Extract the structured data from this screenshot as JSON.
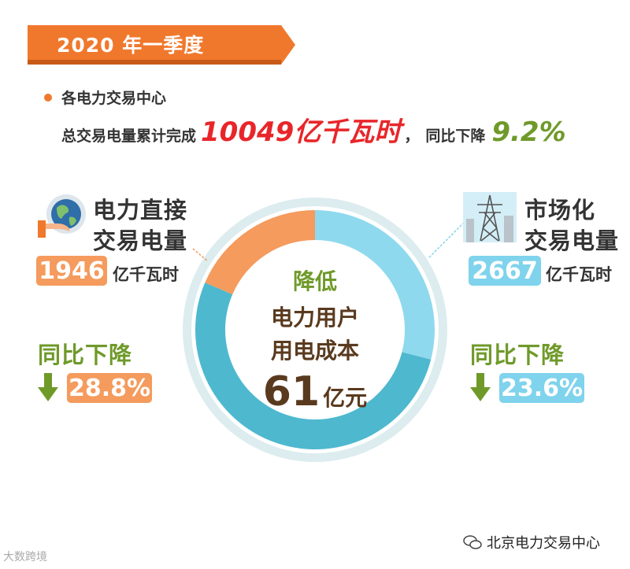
{
  "header": {
    "title": "2020 年一季度"
  },
  "summary": {
    "line1": "各电力交易中心",
    "line2_prefix": "总交易电量累计完成",
    "total_value": "10049亿千瓦时",
    "separator": "，",
    "decline_label": "同比下降",
    "decline_value": "9.2%"
  },
  "colors": {
    "orange": "#f0782d",
    "red": "#e8262a",
    "green": "#6f9a2a",
    "box_orange": "#f49b5d",
    "box_blue": "#7fd3ec",
    "ring_teal": "#4eb8cf"
  },
  "center": {
    "line1": "降低",
    "line2": "电力用户",
    "line3": "用电成本",
    "number": "61",
    "unit": "亿元"
  },
  "left_panel": {
    "title_line1": "电力直接",
    "title_line2": "交易电量",
    "value": "1946",
    "unit": "亿千瓦时",
    "decline_label": "同比下降",
    "decline_value": "28.8%",
    "icon": "globe-hand-icon"
  },
  "right_panel": {
    "title_line1": "市场化",
    "title_line2": "交易电量",
    "value": "2667",
    "unit": "亿千瓦时",
    "decline_label": "同比下降",
    "decline_value": "23.6%",
    "icon": "power-tower-icon"
  },
  "chart_data": {
    "type": "pie",
    "categories": [
      "电力直接交易电量",
      "市场化交易电量"
    ],
    "values": [
      1946,
      2667
    ]
  },
  "watermarks": {
    "left": "大数跨境",
    "right": "北京电力交易中心"
  }
}
